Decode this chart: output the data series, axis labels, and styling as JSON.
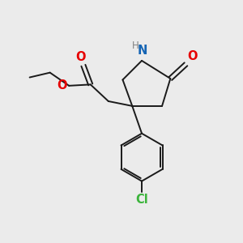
{
  "bg_color": "#ebebeb",
  "bond_color": "#1a1a1a",
  "N_color": "#1464b4",
  "O_color": "#e60000",
  "Cl_color": "#3cb43c",
  "H_color": "#828282",
  "line_width": 1.4,
  "font_size": 10.5,
  "xlim": [
    0,
    10
  ],
  "ylim": [
    0,
    10
  ]
}
